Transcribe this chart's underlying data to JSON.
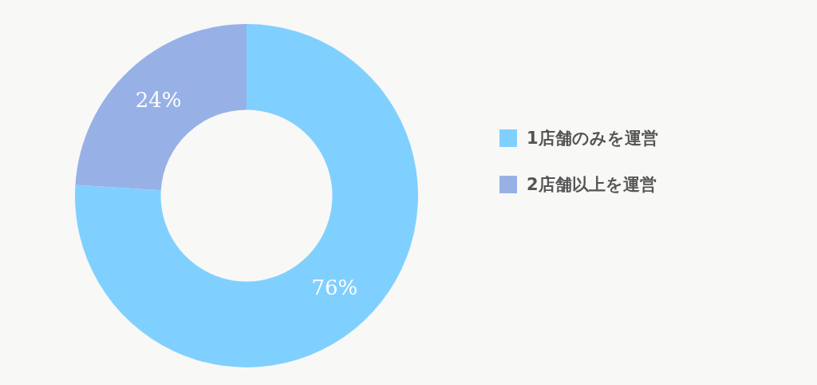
{
  "chart_data": {
    "type": "donut",
    "categories": [
      "1店舗のみを運営",
      "2店舗以上を運営"
    ],
    "values": [
      76,
      24
    ],
    "colors": [
      "#80d0ff",
      "#97b1e6"
    ],
    "value_labels": [
      "76%",
      "24%"
    ],
    "legend": "right"
  }
}
